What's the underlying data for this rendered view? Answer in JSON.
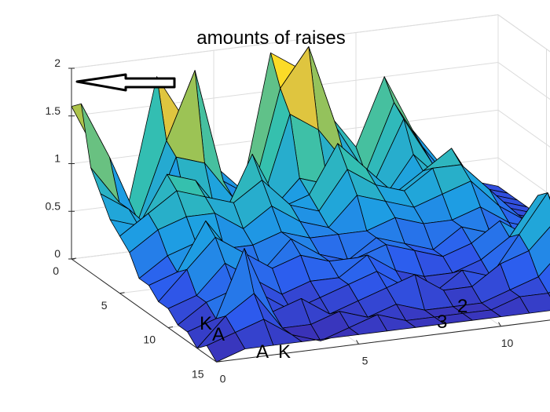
{
  "chart_data": {
    "type": "surface",
    "title": "amounts of raises",
    "xlabel": "",
    "ylabel": "",
    "zlabel": "",
    "grid": true,
    "colormap": "parula",
    "colormap_stops": [
      "#3e26a8",
      "#2d5bef",
      "#1da0e2",
      "#35c0ae",
      "#a8c34b",
      "#fcc638",
      "#f9fb0e"
    ],
    "xlim": [
      0,
      15
    ],
    "ylim": [
      0,
      15
    ],
    "zlim": [
      0,
      2
    ],
    "x_ticks": [
      "0",
      "5",
      "10",
      "15"
    ],
    "y_ticks": [
      "0",
      "5",
      "10",
      "15"
    ],
    "z_ticks": [
      "0",
      "0.5",
      "1",
      "1.5",
      "2"
    ],
    "x": [
      0,
      1,
      2,
      3,
      4,
      5,
      6,
      7,
      8,
      9,
      10,
      11,
      12,
      13,
      14,
      15
    ],
    "y": [
      0,
      1,
      2,
      3,
      4,
      5,
      6,
      7,
      8,
      9,
      10,
      11,
      12,
      13,
      14,
      15
    ],
    "z": [
      [
        1.6,
        1.0,
        0.5,
        1.8,
        1.3,
        0.8,
        0.5,
        1.9,
        1.7,
        1.2,
        0.8,
        1.5,
        0.9,
        0.5,
        0.3,
        0.2
      ],
      [
        1.7,
        1.1,
        0.4,
        1.2,
        1.9,
        0.7,
        0.5,
        1.6,
        2.0,
        1.1,
        0.6,
        1.3,
        0.8,
        0.4,
        0.3,
        0.2
      ],
      [
        1.1,
        0.7,
        0.4,
        1.1,
        1.0,
        0.6,
        0.5,
        1.4,
        1.2,
        0.8,
        0.6,
        1.2,
        0.7,
        0.4,
        0.3,
        0.2
      ],
      [
        0.9,
        0.7,
        0.4,
        0.7,
        0.6,
        0.6,
        0.5,
        0.8,
        0.7,
        0.6,
        0.5,
        0.9,
        0.6,
        0.4,
        0.3,
        0.2
      ],
      [
        0.7,
        0.6,
        1.1,
        1.0,
        0.6,
        1.2,
        0.6,
        0.7,
        1.2,
        0.9,
        0.6,
        0.8,
        1.0,
        0.5,
        0.3,
        0.2
      ],
      [
        0.6,
        0.8,
        1.0,
        0.9,
        0.8,
        1.0,
        0.7,
        0.6,
        1.0,
        0.8,
        0.7,
        0.9,
        0.9,
        0.6,
        0.3,
        0.2
      ],
      [
        0.5,
        0.7,
        0.8,
        0.8,
        0.6,
        0.8,
        0.6,
        0.5,
        0.8,
        0.7,
        0.6,
        0.7,
        0.8,
        0.5,
        0.3,
        0.2
      ],
      [
        0.3,
        0.5,
        0.6,
        0.5,
        0.5,
        0.6,
        0.5,
        0.5,
        0.5,
        0.6,
        0.5,
        0.5,
        0.6,
        0.4,
        0.3,
        0.2
      ],
      [
        0.3,
        0.4,
        0.9,
        0.5,
        0.3,
        0.6,
        0.4,
        0.3,
        0.5,
        0.4,
        0.3,
        0.5,
        0.4,
        0.3,
        0.5,
        0.2
      ],
      [
        0.2,
        0.5,
        0.8,
        0.6,
        0.4,
        0.5,
        0.4,
        0.4,
        0.5,
        0.4,
        0.3,
        0.4,
        0.6,
        0.4,
        0.3,
        0.2
      ],
      [
        0.2,
        0.3,
        0.6,
        0.4,
        0.2,
        0.3,
        0.3,
        0.5,
        0.3,
        0.2,
        0.2,
        0.3,
        0.5,
        0.9,
        0.4,
        0.2
      ],
      [
        0.1,
        0.3,
        0.4,
        0.3,
        0.1,
        0.2,
        0.3,
        0.4,
        0.2,
        0.1,
        0.3,
        0.2,
        0.6,
        1.0,
        0.3,
        0.1
      ],
      [
        0.1,
        0.2,
        0.9,
        0.2,
        0.3,
        0.1,
        0.2,
        0.3,
        0.4,
        0.2,
        0.2,
        0.4,
        0.5,
        0.8,
        0.2,
        0.1
      ],
      [
        0.0,
        0.3,
        0.5,
        0.1,
        0.1,
        0.2,
        0.1,
        0.2,
        0.1,
        0.1,
        0.1,
        0.2,
        0.3,
        0.6,
        0.1,
        0.5
      ],
      [
        0.1,
        0.2,
        0.3,
        0.1,
        0.0,
        0.1,
        0.2,
        0.1,
        0.1,
        0.1,
        0.1,
        0.2,
        0.2,
        0.3,
        0.1,
        0.2
      ],
      [
        0.0,
        0.1,
        0.1,
        0.1,
        0.1,
        0.1,
        0.1,
        0.1,
        0.1,
        0.1,
        0.1,
        0.1,
        0.1,
        0.1,
        0.1,
        0.1
      ]
    ],
    "annotations": [
      "K",
      "A",
      "A",
      "K",
      "3",
      "2"
    ],
    "arrow": {
      "points_to_z": 2,
      "direction": "left"
    }
  }
}
